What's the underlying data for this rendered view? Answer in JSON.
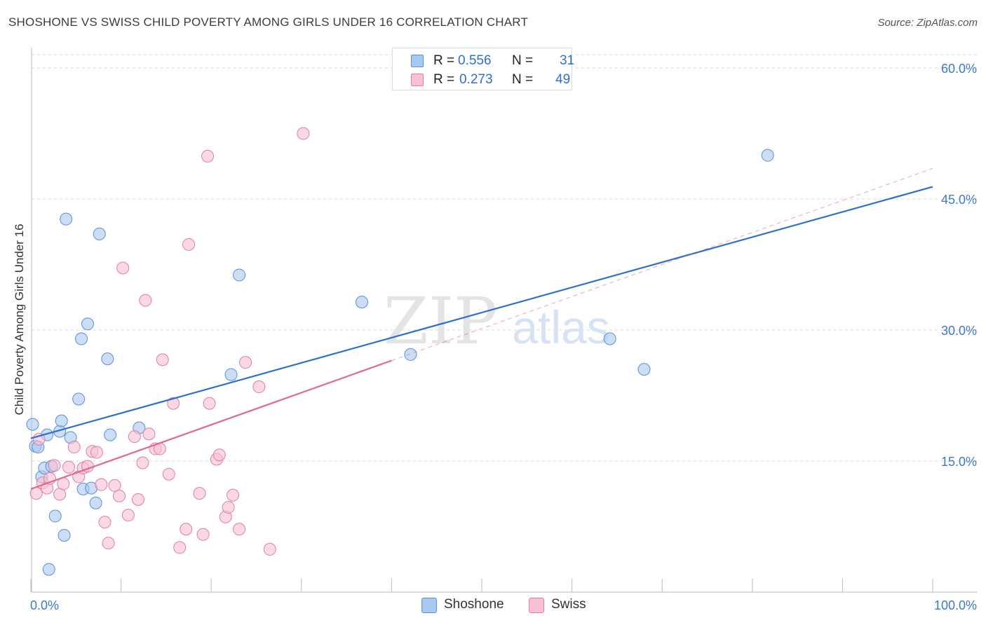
{
  "header": {
    "title": "SHOSHONE VS SWISS CHILD POVERTY AMONG GIRLS UNDER 16 CORRELATION CHART",
    "source": "Source: ZipAtlas.com"
  },
  "legend": {
    "rows": [
      {
        "r_label": "R =",
        "r_value": "0.556",
        "n_label": "N =",
        "n_value": "31",
        "color": "#a9c8f0",
        "stroke": "#5b8fd6"
      },
      {
        "r_label": "R =",
        "r_value": "0.273",
        "n_label": "N =",
        "n_value": "49",
        "color": "#f8c0d2",
        "stroke": "#e07ea0"
      }
    ]
  },
  "chart_data": {
    "type": "scatter",
    "title": "SHOSHONE VS SWISS CHILD POVERTY AMONG GIRLS UNDER 16 CORRELATION CHART",
    "xlabel": "",
    "ylabel": "Child Poverty Among Girls Under 16",
    "xlim": [
      0,
      100
    ],
    "ylim": [
      0,
      60
    ],
    "x_tick_labels": [
      "0.0%",
      "100.0%"
    ],
    "y_ticks": [
      15,
      30,
      45,
      60
    ],
    "y_tick_labels": [
      "15.0%",
      "30.0%",
      "45.0%",
      "60.0%"
    ],
    "grid": true,
    "watermark": {
      "zip": "ZIP",
      "atlas": "atlas"
    },
    "series": [
      {
        "name": "Shoshone",
        "color": "#a9c8f0",
        "stroke": "#5b8fd6",
        "line_color": "#2b6fcf",
        "trend": {
          "x0": 0,
          "y0": 17.6,
          "x1": 100,
          "y1": 46.4,
          "dashed_beyond": null
        },
        "points": [
          [
            0.2,
            19.2
          ],
          [
            0.5,
            16.7
          ],
          [
            0.8,
            16.6
          ],
          [
            1.2,
            13.2
          ],
          [
            1.5,
            14.2
          ],
          [
            1.8,
            18.0
          ],
          [
            2.0,
            2.6
          ],
          [
            2.3,
            14.4
          ],
          [
            2.7,
            8.7
          ],
          [
            3.2,
            18.4
          ],
          [
            3.4,
            19.6
          ],
          [
            3.7,
            6.5
          ],
          [
            3.9,
            42.7
          ],
          [
            4.4,
            17.7
          ],
          [
            5.3,
            22.1
          ],
          [
            5.6,
            29.0
          ],
          [
            5.8,
            11.8
          ],
          [
            6.3,
            30.7
          ],
          [
            6.7,
            11.9
          ],
          [
            7.2,
            10.2
          ],
          [
            7.6,
            41.0
          ],
          [
            8.5,
            26.7
          ],
          [
            8.8,
            18.0
          ],
          [
            12.0,
            18.8
          ],
          [
            22.2,
            24.9
          ],
          [
            23.1,
            36.3
          ],
          [
            36.7,
            33.2
          ],
          [
            42.1,
            27.2
          ],
          [
            64.2,
            29.0
          ],
          [
            68.0,
            25.5
          ],
          [
            81.7,
            50.0
          ]
        ]
      },
      {
        "name": "Swiss",
        "color": "#f8c0d2",
        "stroke": "#e07ea0",
        "line_color": "#e06891",
        "trend": {
          "x0": 0,
          "y0": 11.8,
          "x1": 40,
          "y1": 26.5,
          "dashed_beyond": {
            "x1": 100,
            "y1": 48.5
          }
        },
        "points": [
          [
            0.6,
            11.3
          ],
          [
            0.9,
            17.5
          ],
          [
            1.3,
            12.5
          ],
          [
            1.8,
            11.9
          ],
          [
            2.1,
            13.0
          ],
          [
            2.6,
            14.5
          ],
          [
            3.2,
            11.2
          ],
          [
            3.6,
            12.4
          ],
          [
            4.2,
            14.3
          ],
          [
            4.8,
            16.6
          ],
          [
            5.3,
            13.2
          ],
          [
            5.8,
            14.2
          ],
          [
            6.3,
            14.4
          ],
          [
            6.8,
            16.1
          ],
          [
            7.3,
            16.0
          ],
          [
            7.8,
            12.3
          ],
          [
            8.2,
            8.0
          ],
          [
            8.6,
            5.6
          ],
          [
            9.3,
            12.2
          ],
          [
            9.8,
            11.0
          ],
          [
            10.2,
            37.1
          ],
          [
            10.8,
            8.8
          ],
          [
            11.5,
            17.8
          ],
          [
            11.9,
            10.6
          ],
          [
            12.4,
            14.8
          ],
          [
            12.7,
            33.4
          ],
          [
            13.1,
            18.1
          ],
          [
            13.8,
            16.4
          ],
          [
            14.3,
            16.4
          ],
          [
            14.6,
            26.6
          ],
          [
            15.3,
            13.5
          ],
          [
            15.8,
            21.6
          ],
          [
            16.5,
            5.1
          ],
          [
            17.2,
            7.2
          ],
          [
            17.5,
            39.8
          ],
          [
            18.7,
            11.3
          ],
          [
            19.1,
            6.6
          ],
          [
            19.6,
            49.9
          ],
          [
            19.8,
            21.6
          ],
          [
            20.6,
            15.2
          ],
          [
            20.9,
            15.7
          ],
          [
            21.6,
            8.6
          ],
          [
            21.9,
            9.7
          ],
          [
            22.4,
            11.1
          ],
          [
            23.1,
            7.2
          ],
          [
            23.8,
            26.3
          ],
          [
            25.3,
            23.5
          ],
          [
            26.5,
            4.9
          ],
          [
            30.2,
            52.5
          ]
        ]
      }
    ]
  },
  "bottom_legend": [
    {
      "label": "Shoshone",
      "color": "#a9c8f0",
      "stroke": "#5b8fd6"
    },
    {
      "label": "Swiss",
      "color": "#f8c0d2",
      "stroke": "#e07ea0"
    }
  ]
}
